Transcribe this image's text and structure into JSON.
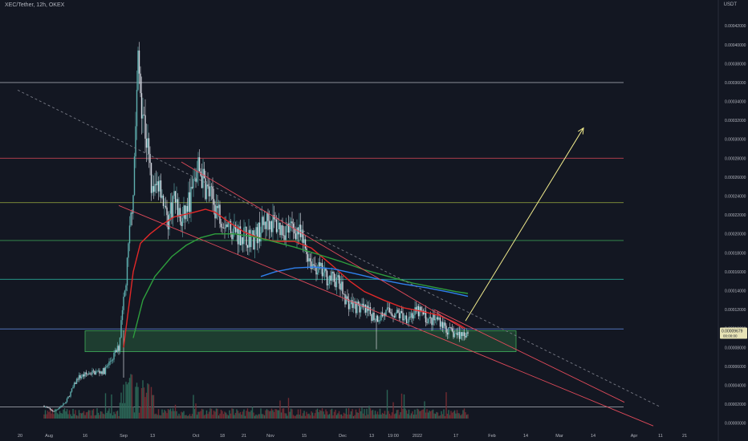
{
  "header": {
    "symbol_line": "XEC/Tether, 12h, OKEX",
    "currency": "USDT"
  },
  "chart_data": {
    "type": "candlestick",
    "y_ticks": [
      "0.00042000",
      "0.00040000",
      "0.00038000",
      "0.00036000",
      "0.00034000",
      "0.00032000",
      "0.00030000",
      "0.00028000",
      "0.00026000",
      "0.00024000",
      "0.00022000",
      "0.00020000",
      "0.00018000",
      "0.00016000",
      "0.00014000",
      "0.00012000",
      "0.00010000",
      "0.00008000",
      "0.00006000",
      "0.00004000",
      "0.00002000",
      "0.00000000"
    ],
    "y_tick_values": [
      0.00042,
      0.0004,
      0.00038,
      0.00036,
      0.00034,
      0.00032,
      0.0003,
      0.00028,
      0.00026,
      0.00024,
      0.00022,
      0.0002,
      0.00018,
      0.00016,
      0.00014,
      0.00012,
      0.0001,
      8e-05,
      6e-05,
      4e-05,
      2e-05,
      0
    ],
    "ylim": [
      -2e-06,
      0.000432
    ],
    "x_labels": [
      "20",
      "Aug",
      "16",
      "Sep",
      "13",
      "Oct",
      "18",
      "21",
      "Nov",
      "15",
      "Dec",
      "13",
      "19:00",
      "2022",
      "17",
      "Feb",
      "14",
      "Mar",
      "14",
      "Apr",
      "11",
      "21"
    ],
    "x_label_days": [
      -11,
      1,
      16,
      32,
      44,
      62,
      73,
      82,
      93,
      107,
      123,
      135,
      144,
      154,
      170,
      185,
      199,
      213,
      227,
      244,
      255,
      265
    ],
    "last_price": "0.00009679",
    "last_price_value": 9.679e-05,
    "last_price_sub": "00:00:00",
    "horizontal_levels": [
      {
        "value": 0.00036,
        "color": "#b2b5be"
      },
      {
        "value": 0.00028,
        "color": "#e04a5a"
      },
      {
        "value": 0.000233,
        "color": "#b5c845"
      },
      {
        "value": 0.000193,
        "color": "#3fae5b"
      },
      {
        "value": 0.000152,
        "color": "#2bbfa8"
      },
      {
        "value": 9.95e-05,
        "color": "#b2b5be"
      },
      {
        "value": 9.95e-05,
        "color": "#3d6fd9"
      },
      {
        "value": 1.7e-05,
        "color": "#b2b5be"
      }
    ],
    "demand_zone": {
      "day_start": 16,
      "day_end": 195,
      "top": 9.75e-05,
      "bottom": 7.55e-05,
      "color": "#3fae5b"
    },
    "trendlines": [
      {
        "from": [
          -12,
          0.000352
        ],
        "to": [
          255,
          1.7e-05
        ],
        "color": "#787b86",
        "dashed": true
      },
      {
        "from": [
          56,
          0.000276
        ],
        "to": [
          173,
          0.0001
        ],
        "color": "#e04a5a"
      },
      {
        "from": [
          30,
          0.00023
        ],
        "to": [
          252,
          -3e-06
        ],
        "color": "#e04a5a"
      },
      {
        "from": [
          161,
          0.00012
        ],
        "to": [
          240,
          2.2e-05
        ],
        "color": "#e04a5a"
      }
    ],
    "projection_arrow": {
      "from": [
        174,
        0.000108
      ],
      "to": [
        223,
        0.000312
      ],
      "color": "#f0ea8c"
    },
    "series": [
      {
        "name": "",
        "color": "#e02828",
        "points": [
          [
            32,
            8e-05
          ],
          [
            34,
            0.00012
          ],
          [
            36,
            0.00016
          ],
          [
            39,
            0.00019
          ],
          [
            43,
            0.0002
          ],
          [
            48,
            0.00021
          ],
          [
            53,
            0.000218
          ],
          [
            60,
            0.000222
          ],
          [
            66,
            0.000226
          ],
          [
            70,
            0.000223
          ],
          [
            76,
            0.000212
          ],
          [
            82,
            0.000202
          ],
          [
            88,
            0.000196
          ],
          [
            95,
            0.000192
          ],
          [
            103,
            0.000192
          ],
          [
            110,
            0.000185
          ],
          [
            118,
            0.000168
          ],
          [
            126,
            0.00015
          ],
          [
            132,
            0.000139
          ],
          [
            140,
            0.00013
          ],
          [
            148,
            0.000122
          ],
          [
            156,
            0.000118
          ],
          [
            163,
            0.000114
          ],
          [
            170,
            0.000106
          ],
          [
            174,
            0.0001
          ]
        ]
      },
      {
        "name": "",
        "color": "#2e9e3d",
        "points": [
          [
            36,
            9e-05
          ],
          [
            40,
            0.00013
          ],
          [
            45,
            0.000155
          ],
          [
            52,
            0.000176
          ],
          [
            58,
            0.000188
          ],
          [
            64,
            0.000196
          ],
          [
            70,
            0.0002
          ],
          [
            78,
            0.0002
          ],
          [
            86,
            0.000197
          ],
          [
            94,
            0.000192
          ],
          [
            103,
            0.000186
          ],
          [
            112,
            0.000179
          ],
          [
            122,
            0.000171
          ],
          [
            132,
            0.000162
          ],
          [
            142,
            0.000155
          ],
          [
            152,
            0.000148
          ],
          [
            162,
            0.000143
          ],
          [
            170,
            0.000139
          ],
          [
            175,
            0.000137
          ]
        ]
      },
      {
        "name": "",
        "color": "#2f80ed",
        "points": [
          [
            89,
            0.000155
          ],
          [
            95,
            0.00016
          ],
          [
            103,
            0.000164
          ],
          [
            111,
            0.000165
          ],
          [
            119,
            0.000163
          ],
          [
            128,
            0.000158
          ],
          [
            138,
            0.000152
          ],
          [
            148,
            0.000147
          ],
          [
            158,
            0.000143
          ],
          [
            168,
            0.000138
          ],
          [
            175,
            0.000134
          ]
        ]
      }
    ],
    "candles_note": "",
    "volume_note": ""
  },
  "colors": {
    "background": "#131722",
    "up": "#5fb0b0",
    "down": "#d3d6df",
    "text": "#b2b5be",
    "volume_up": "#2e6b5b",
    "volume_down": "#7a2c34"
  }
}
